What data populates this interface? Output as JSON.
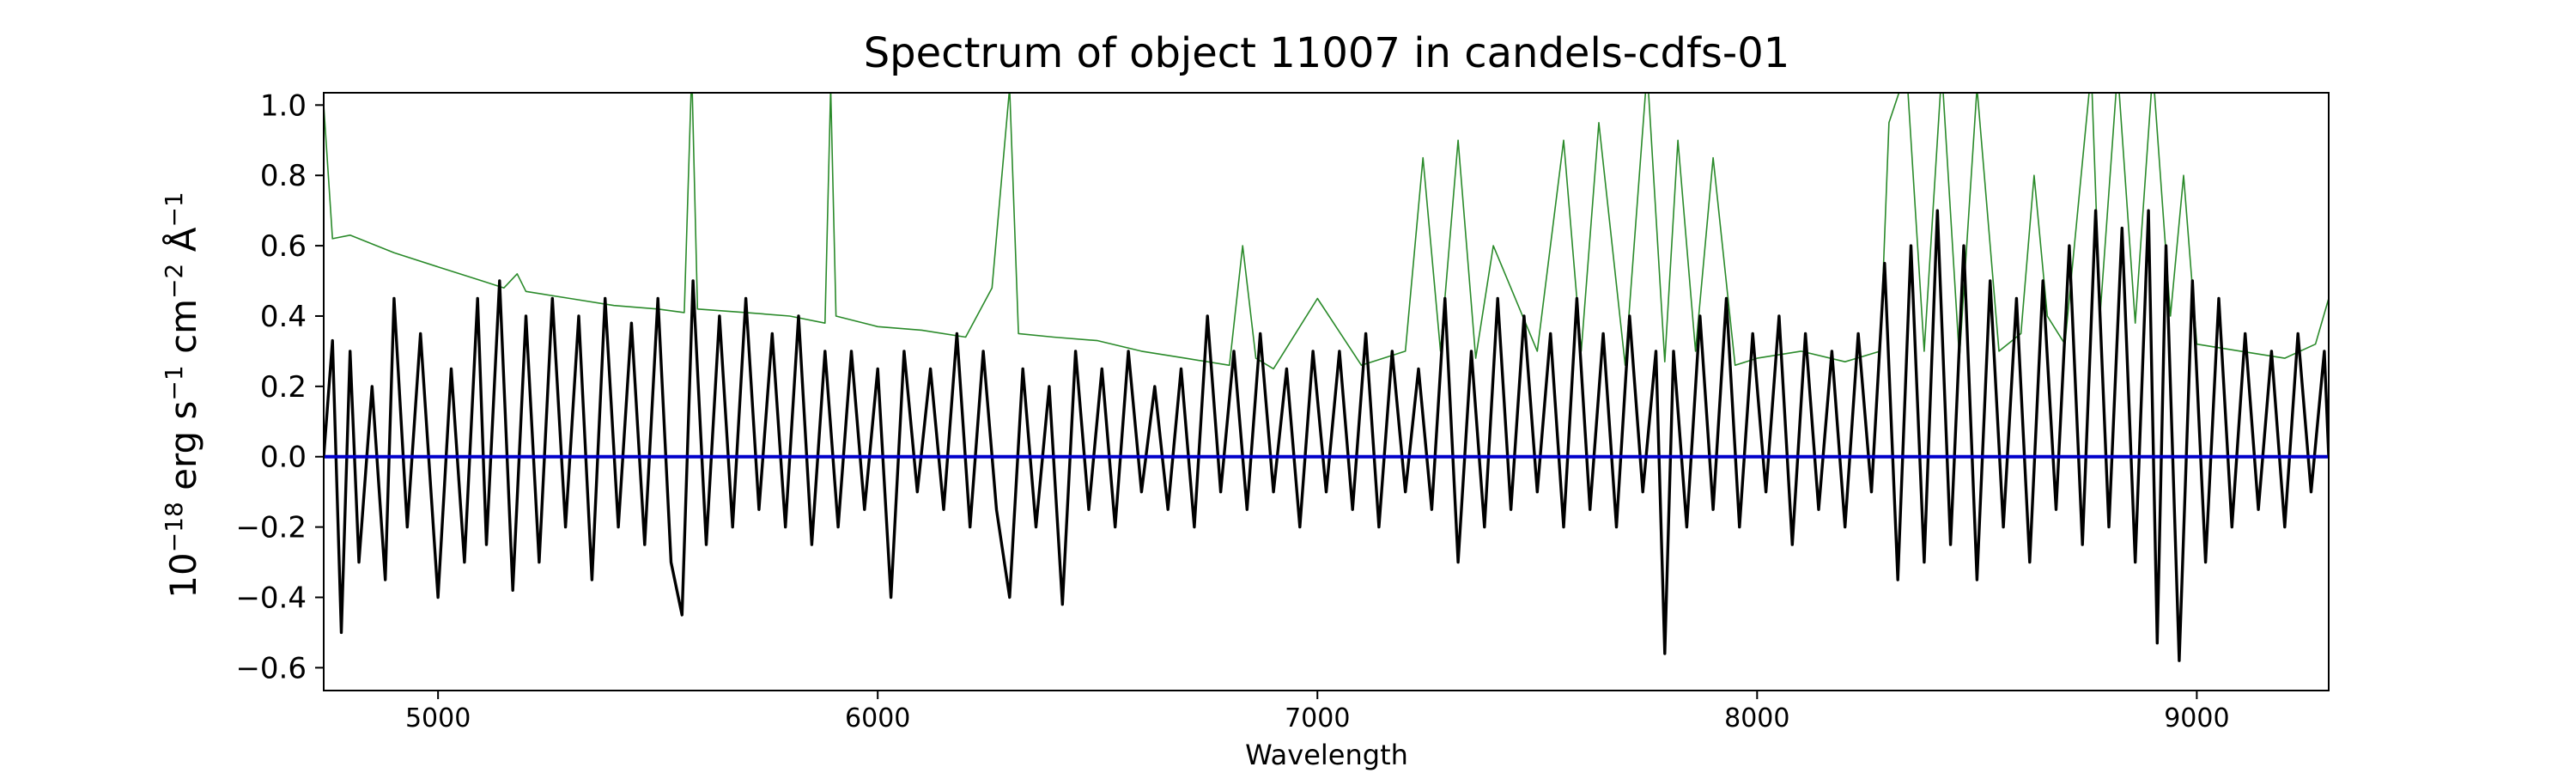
{
  "chart_data": {
    "type": "line",
    "title": "Spectrum of object 11007 in candels-cdfs-01",
    "xlabel": "Wavelength",
    "ylabel": {
      "base": "10",
      "exp1": "−18",
      "mid1": " erg s",
      "exp2": "−1",
      "mid2": " cm",
      "exp3": "−2",
      "mid3": " Å",
      "exp4": "−1"
    },
    "xlim": [
      4740,
      9300
    ],
    "ylim": [
      -0.665,
      1.035
    ],
    "x_ticks": [
      5000,
      6000,
      7000,
      8000,
      9000
    ],
    "x_tick_labels": [
      "5000",
      "6000",
      "7000",
      "8000",
      "9000"
    ],
    "y_ticks": [
      -0.6,
      -0.4,
      -0.2,
      0.0,
      0.2,
      0.4,
      0.6,
      0.8,
      1.0
    ],
    "y_tick_labels": [
      "−0.6",
      "−0.4",
      "−0.2",
      "0.0",
      "0.2",
      "0.4",
      "0.6",
      "0.8",
      "1.0"
    ],
    "grid": false,
    "legend": "none",
    "series": [
      {
        "color": "#2a8a2a",
        "role": "error spectrum (noise)",
        "x": [
          4740,
          4760,
          4800,
          4900,
          5000,
          5100,
          5150,
          5180,
          5200,
          5300,
          5400,
          5500,
          5560,
          5577,
          5590,
          5700,
          5800,
          5880,
          5893,
          5905,
          6000,
          6100,
          6200,
          6260,
          6300,
          6320,
          6400,
          6500,
          6600,
          6700,
          6800,
          6830,
          6860,
          6900,
          7000,
          7100,
          7200,
          7240,
          7280,
          7320,
          7360,
          7400,
          7500,
          7560,
          7600,
          7640,
          7700,
          7750,
          7790,
          7820,
          7860,
          7900,
          7950,
          8000,
          8100,
          8200,
          8280,
          8300,
          8340,
          8380,
          8420,
          8460,
          8500,
          8550,
          8600,
          8630,
          8660,
          8700,
          8760,
          8780,
          8820,
          8860,
          8900,
          8940,
          8970,
          9000,
          9100,
          9200,
          9270,
          9300
        ],
        "y": [
          1.0,
          0.62,
          0.63,
          0.58,
          0.54,
          0.5,
          0.48,
          0.52,
          0.47,
          0.45,
          0.43,
          0.42,
          0.41,
          1.1,
          0.42,
          0.41,
          0.4,
          0.38,
          1.05,
          0.4,
          0.37,
          0.36,
          0.34,
          0.48,
          1.05,
          0.35,
          0.34,
          0.33,
          0.3,
          0.28,
          0.26,
          0.6,
          0.28,
          0.25,
          0.45,
          0.26,
          0.3,
          0.85,
          0.3,
          0.9,
          0.28,
          0.6,
          0.3,
          0.9,
          0.3,
          0.95,
          0.26,
          1.1,
          0.27,
          0.9,
          0.3,
          0.85,
          0.26,
          0.28,
          0.3,
          0.27,
          0.3,
          0.95,
          1.1,
          0.3,
          1.1,
          0.28,
          1.05,
          0.3,
          0.35,
          0.8,
          0.4,
          0.32,
          1.1,
          0.4,
          1.1,
          0.38,
          1.1,
          0.4,
          0.8,
          0.32,
          0.3,
          0.28,
          0.32,
          0.45
        ]
      },
      {
        "color": "#000000",
        "role": "flux spectrum",
        "x": [
          4740,
          4760,
          4780,
          4800,
          4820,
          4850,
          4880,
          4900,
          4930,
          4960,
          5000,
          5030,
          5060,
          5090,
          5110,
          5140,
          5170,
          5200,
          5230,
          5260,
          5290,
          5320,
          5350,
          5380,
          5410,
          5440,
          5470,
          5500,
          5530,
          5555,
          5580,
          5610,
          5640,
          5670,
          5700,
          5730,
          5760,
          5790,
          5820,
          5850,
          5880,
          5910,
          5940,
          5970,
          6000,
          6030,
          6060,
          6090,
          6120,
          6150,
          6180,
          6210,
          6240,
          6270,
          6300,
          6330,
          6360,
          6390,
          6420,
          6450,
          6480,
          6510,
          6540,
          6570,
          6600,
          6630,
          6660,
          6690,
          6720,
          6750,
          6780,
          6810,
          6840,
          6870,
          6900,
          6930,
          6960,
          6990,
          7020,
          7050,
          7080,
          7110,
          7140,
          7170,
          7200,
          7230,
          7260,
          7290,
          7320,
          7350,
          7380,
          7410,
          7440,
          7470,
          7500,
          7530,
          7560,
          7590,
          7620,
          7650,
          7680,
          7710,
          7740,
          7770,
          7790,
          7810,
          7840,
          7870,
          7900,
          7930,
          7960,
          7990,
          8020,
          8050,
          8080,
          8110,
          8140,
          8170,
          8200,
          8230,
          8260,
          8290,
          8320,
          8350,
          8380,
          8410,
          8440,
          8470,
          8500,
          8530,
          8560,
          8590,
          8620,
          8650,
          8680,
          8710,
          8740,
          8770,
          8800,
          8830,
          8860,
          8890,
          8910,
          8930,
          8960,
          8990,
          9020,
          9050,
          9080,
          9110,
          9140,
          9170,
          9200,
          9230,
          9260,
          9290,
          9300
        ],
        "y": [
          0.0,
          0.33,
          -0.5,
          0.3,
          -0.3,
          0.2,
          -0.35,
          0.45,
          -0.2,
          0.35,
          -0.4,
          0.25,
          -0.3,
          0.45,
          -0.25,
          0.5,
          -0.38,
          0.4,
          -0.3,
          0.45,
          -0.2,
          0.4,
          -0.35,
          0.45,
          -0.2,
          0.38,
          -0.25,
          0.45,
          -0.3,
          -0.45,
          0.5,
          -0.25,
          0.4,
          -0.2,
          0.45,
          -0.15,
          0.35,
          -0.2,
          0.4,
          -0.25,
          0.3,
          -0.2,
          0.3,
          -0.15,
          0.25,
          -0.4,
          0.3,
          -0.1,
          0.25,
          -0.15,
          0.35,
          -0.2,
          0.3,
          -0.15,
          -0.4,
          0.25,
          -0.2,
          0.2,
          -0.42,
          0.3,
          -0.15,
          0.25,
          -0.2,
          0.3,
          -0.1,
          0.2,
          -0.15,
          0.25,
          -0.2,
          0.4,
          -0.1,
          0.3,
          -0.15,
          0.35,
          -0.1,
          0.25,
          -0.2,
          0.3,
          -0.1,
          0.3,
          -0.15,
          0.35,
          -0.2,
          0.3,
          -0.1,
          0.25,
          -0.15,
          0.45,
          -0.3,
          0.3,
          -0.2,
          0.45,
          -0.15,
          0.4,
          -0.1,
          0.35,
          -0.2,
          0.45,
          -0.15,
          0.35,
          -0.2,
          0.4,
          -0.1,
          0.3,
          -0.56,
          0.3,
          -0.2,
          0.4,
          -0.15,
          0.45,
          -0.2,
          0.35,
          -0.1,
          0.4,
          -0.25,
          0.35,
          -0.15,
          0.3,
          -0.2,
          0.35,
          -0.1,
          0.55,
          -0.35,
          0.6,
          -0.3,
          0.7,
          -0.25,
          0.6,
          -0.35,
          0.5,
          -0.2,
          0.45,
          -0.3,
          0.5,
          -0.15,
          0.6,
          -0.25,
          0.7,
          -0.2,
          0.65,
          -0.3,
          0.7,
          -0.53,
          0.6,
          -0.58,
          0.5,
          -0.3,
          0.45,
          -0.2,
          0.35,
          -0.15,
          0.3,
          -0.2,
          0.35,
          -0.1,
          0.3,
          0.0
        ]
      },
      {
        "color": "#0000cc",
        "role": "model / zero level",
        "x": [
          4740,
          9300
        ],
        "y": [
          0.0,
          0.0
        ]
      }
    ]
  }
}
